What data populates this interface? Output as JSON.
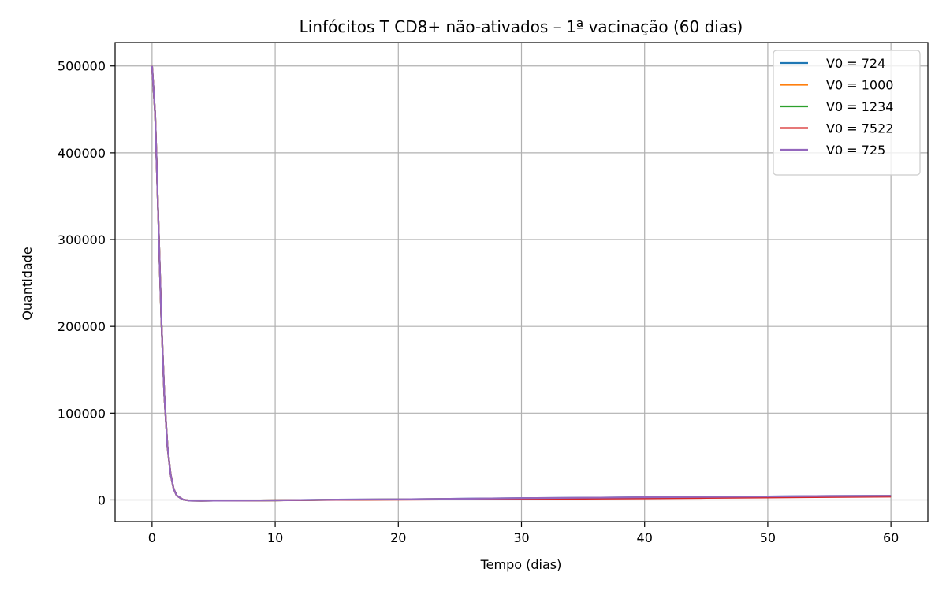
{
  "chart_data": {
    "type": "line",
    "title": "Linfócitos T CD8+ não-ativados – 1ª vacinação (60 dias)",
    "xlabel": "Tempo (dias)",
    "ylabel": "Quantidade",
    "xlim": [
      -3,
      63
    ],
    "ylim": [
      -25000,
      527000
    ],
    "xticks": [
      0,
      10,
      20,
      30,
      40,
      50,
      60
    ],
    "xtick_labels": [
      "0",
      "10",
      "20",
      "30",
      "40",
      "50",
      "60"
    ],
    "yticks": [
      0,
      100000,
      200000,
      300000,
      400000,
      500000
    ],
    "ytick_labels": [
      "0",
      "100000",
      "200000",
      "300000",
      "400000",
      "500000"
    ],
    "grid": true,
    "legend_position": "top-right",
    "series": [
      {
        "name": "V0 = 724",
        "color": "#1f77b4",
        "x": [
          0,
          0.25,
          0.5,
          0.75,
          1,
          1.25,
          1.5,
          1.75,
          2,
          2.5,
          3,
          4,
          5,
          7.5,
          10,
          15,
          20,
          25,
          30,
          35,
          40,
          45,
          50,
          55,
          60
        ],
        "y": [
          500000,
          445000,
          330000,
          210000,
          120000,
          62000,
          30000,
          13000,
          5000,
          500,
          -800,
          -1000,
          -900,
          -700,
          -500,
          300,
          700,
          1300,
          2000,
          2500,
          3000,
          3500,
          4000,
          4500,
          4800
        ]
      },
      {
        "name": "V0 = 1000",
        "color": "#ff7f0e",
        "x": [
          0,
          0.25,
          0.5,
          0.75,
          1,
          1.25,
          1.5,
          1.75,
          2,
          2.5,
          3,
          4,
          5,
          7.5,
          10,
          15,
          20,
          25,
          30,
          35,
          40,
          45,
          50,
          55,
          60
        ],
        "y": [
          500000,
          445000,
          330000,
          210000,
          120000,
          62000,
          30000,
          13000,
          5000,
          500,
          -800,
          -1000,
          -900,
          -700,
          -500,
          200,
          600,
          1100,
          1700,
          2200,
          2700,
          3200,
          3700,
          4200,
          4600
        ]
      },
      {
        "name": "V0 = 1234",
        "color": "#2ca02c",
        "x": [
          0,
          0.25,
          0.5,
          0.75,
          1,
          1.25,
          1.5,
          1.75,
          2,
          2.5,
          3,
          4,
          5,
          7.5,
          10,
          15,
          20,
          25,
          30,
          35,
          40,
          45,
          50,
          55,
          60
        ],
        "y": [
          500000,
          445000,
          330000,
          210000,
          120000,
          62000,
          30000,
          13000,
          5000,
          500,
          -800,
          -1000,
          -900,
          -700,
          -500,
          150,
          500,
          1000,
          1500,
          2000,
          2500,
          3000,
          3500,
          4000,
          4400
        ]
      },
      {
        "name": "V0 = 7522",
        "color": "#d62728",
        "x": [
          0,
          0.25,
          0.5,
          0.75,
          1,
          1.25,
          1.5,
          1.75,
          2,
          2.5,
          3,
          4,
          5,
          7.5,
          10,
          15,
          20,
          25,
          30,
          35,
          40,
          45,
          50,
          55,
          60
        ],
        "y": [
          500000,
          445000,
          330000,
          210000,
          120000,
          62000,
          30000,
          13000,
          5000,
          500,
          -800,
          -1000,
          -900,
          -700,
          -500,
          0,
          300,
          600,
          1000,
          1400,
          1800,
          2300,
          2800,
          3300,
          3800
        ]
      },
      {
        "name": "V0 = 725",
        "color": "#9467bd",
        "x": [
          0,
          0.25,
          0.5,
          0.75,
          1,
          1.25,
          1.5,
          1.75,
          2,
          2.5,
          3,
          4,
          5,
          7.5,
          10,
          15,
          20,
          25,
          30,
          35,
          40,
          45,
          50,
          55,
          60
        ],
        "y": [
          500000,
          445000,
          330000,
          210000,
          120000,
          62000,
          30000,
          13000,
          5000,
          500,
          -800,
          -1000,
          -900,
          -700,
          -500,
          300,
          700,
          1300,
          2000,
          2500,
          3000,
          3500,
          4000,
          4500,
          4800
        ]
      }
    ]
  }
}
